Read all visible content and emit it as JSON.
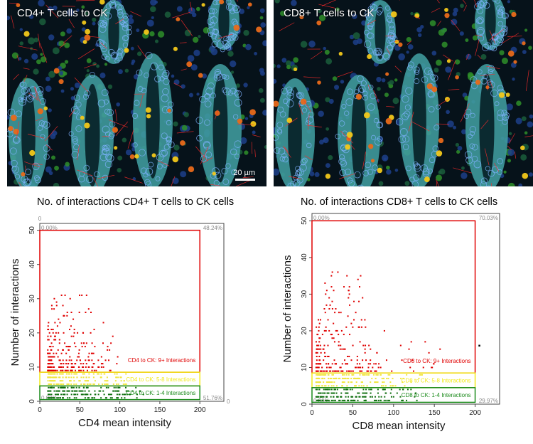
{
  "panels": [
    {
      "title": "CD4+ T cells to CK",
      "scalebar": "20 µm"
    },
    {
      "title": "CD8+ T cells to CK"
    }
  ],
  "colors": {
    "red_gate": "#e00000",
    "yellow_gate": "#f2ea1a",
    "green_gate": "#1a8a1a",
    "red_points": "#e00000",
    "yellow_points": "#f0e640",
    "green_points": "#0e6e0e"
  },
  "chart_data": [
    {
      "type": "scatter",
      "title": "No. of interactions CD4+ T cells to CK cells",
      "xlabel": "CD4 mean intensity",
      "ylabel": "Number of interactions",
      "xlim": [
        0,
        230
      ],
      "ylim": [
        0,
        52
      ],
      "xticks": [
        0,
        50,
        100,
        150,
        200
      ],
      "yticks": [
        0,
        10,
        20,
        30,
        40,
        50
      ],
      "top_axis_label": "0",
      "right_axis_label": "0",
      "quadrant_labels": {
        "top_left": "0.00%",
        "top_right": "48.24%",
        "bottom_left": "0.00%",
        "bottom_right": "51.76%"
      },
      "gates": [
        {
          "label": "CD4 to CK: 9+ Interactions",
          "x": [
            0,
            200
          ],
          "y": [
            8.5,
            50
          ],
          "color": "#e00000"
        },
        {
          "label": "CD4 to CK: 5-8 Interactions",
          "x": [
            0,
            200
          ],
          "y": [
            4.5,
            8.5
          ],
          "color": "#f2ea1a"
        },
        {
          "label": "CD4 to CK: 1-4 Interactions",
          "x": [
            0,
            200
          ],
          "y": [
            0.5,
            4.5
          ],
          "color": "#1a8a1a"
        }
      ],
      "point_clusters": [
        {
          "name": "9+ interactions",
          "x_range": [
            10,
            70
          ],
          "y_range": [
            9,
            31
          ],
          "max_x": 100,
          "max_y": 31
        },
        {
          "name": "5-8 interactions",
          "x_range": [
            10,
            90
          ],
          "y_range": [
            5,
            8
          ],
          "max_x": 110
        },
        {
          "name": "1-4 interactions",
          "x_range": [
            10,
            110
          ],
          "y_range": [
            1,
            4
          ],
          "max_x": 130
        }
      ]
    },
    {
      "type": "scatter",
      "title": "No. of interactions CD8+ T cells to CK cells",
      "xlabel": "CD8 mean intensity",
      "ylabel": "Number of interactions",
      "xlim": [
        0,
        230
      ],
      "ylim": [
        0,
        52
      ],
      "xticks": [
        0,
        50,
        100,
        150,
        200
      ],
      "yticks": [
        0,
        10,
        20,
        30,
        40,
        50
      ],
      "quadrant_labels": {
        "top_left": "0.00%",
        "top_right": "70.03%",
        "bottom_left": "0.00%",
        "bottom_right": "29.97%"
      },
      "gates": [
        {
          "label": "CD8 to CK: 9+ Interactions",
          "x": [
            0,
            200
          ],
          "y": [
            8.5,
            50
          ],
          "color": "#e00000"
        },
        {
          "label": "CD8 to CK: 5-8 Interactions",
          "x": [
            0,
            200
          ],
          "y": [
            4.5,
            8.5
          ],
          "color": "#f2ea1a"
        },
        {
          "label": "CD8 to CK: 1-4 Interactions",
          "x": [
            0,
            200
          ],
          "y": [
            0.5,
            4.5
          ],
          "color": "#1a8a1a"
        }
      ],
      "point_clusters": [
        {
          "name": "9+ interactions",
          "x_range": [
            5,
            80
          ],
          "y_range": [
            9,
            36
          ],
          "max_x": 160,
          "max_y": 36
        },
        {
          "name": "5-8 interactions",
          "x_range": [
            5,
            100
          ],
          "y_range": [
            5,
            8
          ],
          "max_x": 140
        },
        {
          "name": "1-4 interactions",
          "x_range": [
            5,
            110
          ],
          "y_range": [
            1,
            4
          ],
          "max_x": 130
        }
      ],
      "outlier": {
        "x": 205,
        "y": 16
      }
    }
  ]
}
